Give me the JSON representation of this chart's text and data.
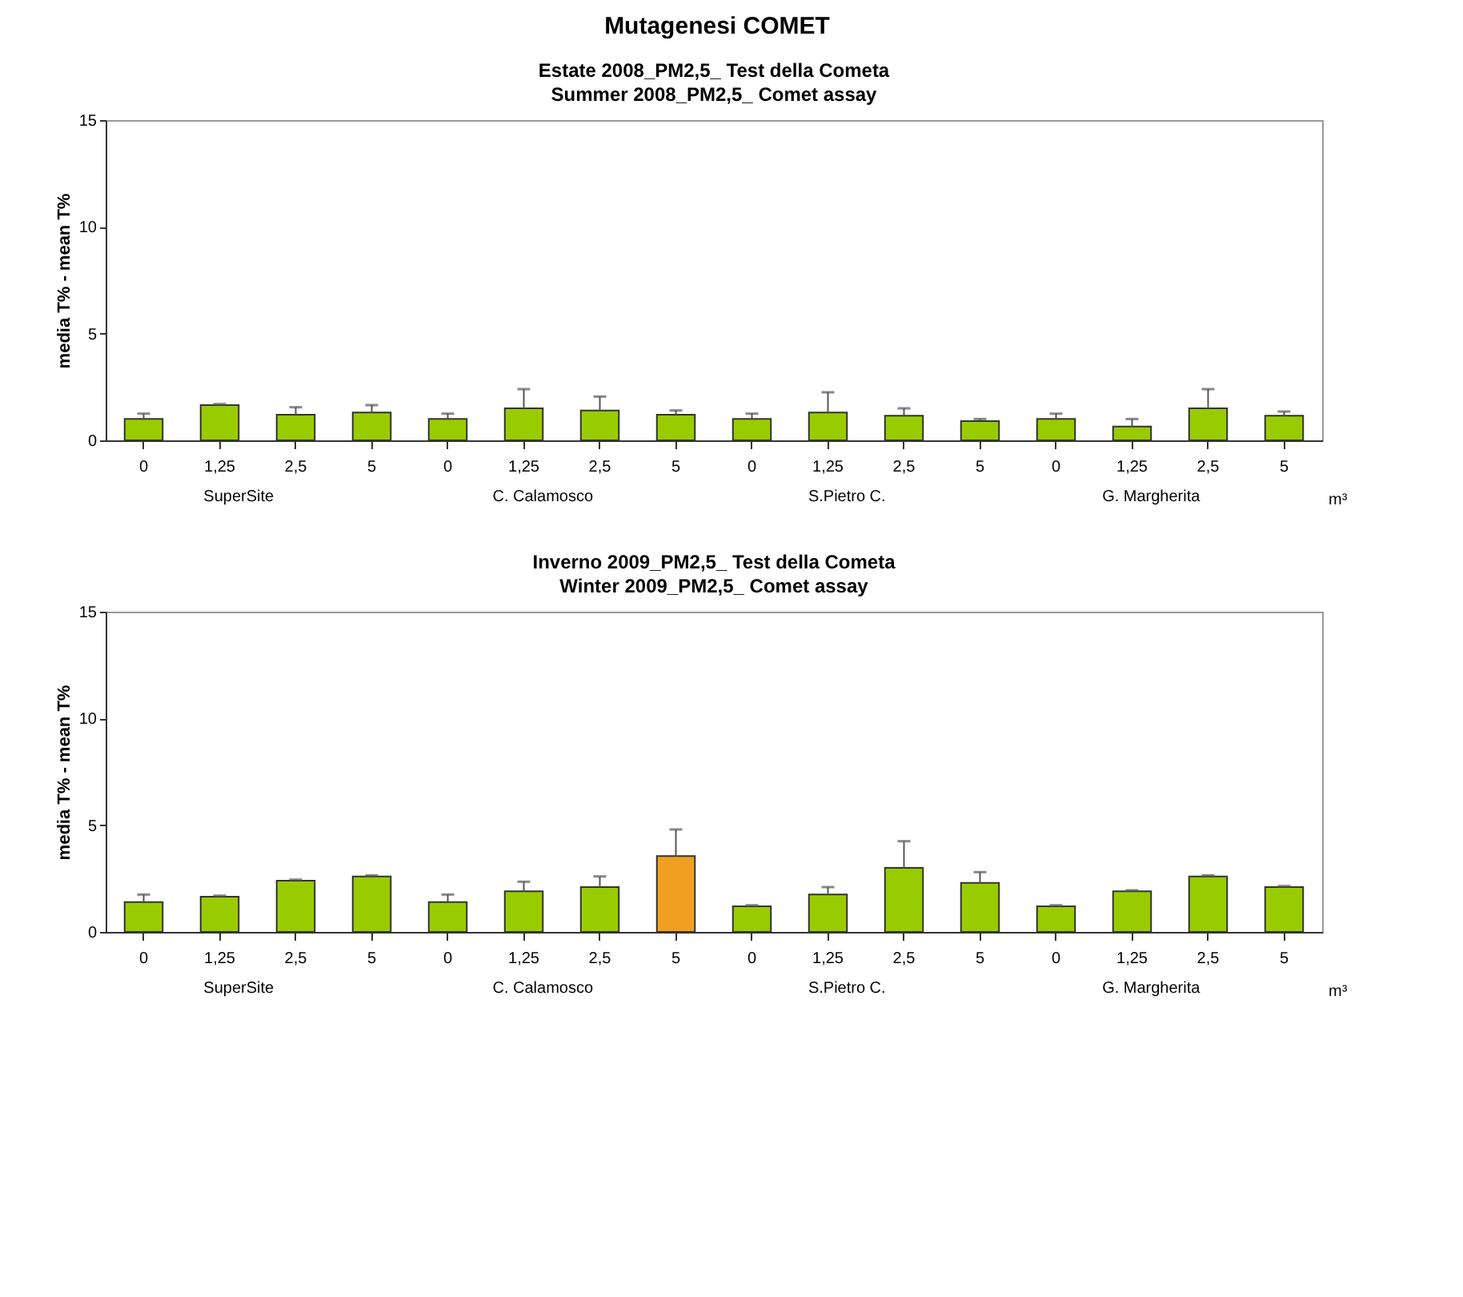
{
  "chart_data": [
    {
      "type": "bar",
      "title": "Estate 2008_PM2,5_ Test della Cometa",
      "subtitle": "Summer 2008_PM2,5_ Comet assay",
      "ylabel": "media T% - mean T%",
      "xlabel": "m³",
      "annotations": [
        "Mutagenesi COMET",
        "SuperSite",
        "C. Calamosco",
        "S.Pietro C.",
        "G. Margherita"
      ],
      "categories": [
        "0",
        "1,25",
        "2,5",
        "5",
        "0",
        "1,25",
        "2,5",
        "5",
        "0",
        "1,25",
        "2,5",
        "5",
        "0",
        "1,25",
        "2,5",
        "5"
      ],
      "values": [
        1.0,
        1.65,
        1.2,
        1.3,
        1.0,
        1.5,
        1.4,
        1.2,
        1.0,
        1.3,
        1.15,
        0.9,
        1.0,
        0.65,
        1.5,
        1.15
      ],
      "errors": [
        [
          1.0,
          1.25
        ],
        [
          1.65,
          1.7
        ],
        [
          1.2,
          1.55
        ],
        [
          1.3,
          1.65
        ],
        [
          1.0,
          1.25
        ],
        [
          1.5,
          2.4
        ],
        [
          1.4,
          2.05
        ],
        [
          1.2,
          1.4
        ],
        [
          1.0,
          1.25
        ],
        [
          1.3,
          2.25
        ],
        [
          1.15,
          1.5
        ],
        [
          0.9,
          1.0
        ],
        [
          1.0,
          1.25
        ],
        [
          0.65,
          1.0
        ],
        [
          1.5,
          2.4
        ],
        [
          1.15,
          1.35
        ]
      ],
      "colors": [
        "#99cc00",
        "#99cc00",
        "#99cc00",
        "#99cc00",
        "#99cc00",
        "#99cc00",
        "#99cc00",
        "#99cc00",
        "#99cc00",
        "#99cc00",
        "#99cc00",
        "#99cc00",
        "#99cc00",
        "#99cc00",
        "#99cc00",
        "#99cc00"
      ],
      "ylim": [
        0,
        15
      ],
      "yticks": [
        0,
        5,
        10,
        15
      ],
      "grid": false,
      "legend": false
    },
    {
      "type": "bar",
      "title": "Inverno 2009_PM2,5_ Test della Cometa",
      "subtitle": "Winter 2009_PM2,5_ Comet assay",
      "ylabel": "media T% - mean T%",
      "xlabel": "m³",
      "annotations": [
        "SuperSite",
        "C. Calamosco",
        "S.Pietro C.",
        "G. Margherita"
      ],
      "categories": [
        "0",
        "1,25",
        "2,5",
        "5",
        "0",
        "1,25",
        "2,5",
        "5",
        "0",
        "1,25",
        "2,5",
        "5",
        "0",
        "1,25",
        "2,5",
        "5"
      ],
      "values": [
        1.4,
        1.65,
        2.4,
        2.6,
        1.4,
        1.9,
        2.1,
        3.55,
        1.2,
        1.75,
        3.0,
        2.3,
        1.2,
        1.9,
        2.6,
        2.1
      ],
      "errors": [
        [
          1.4,
          1.75
        ],
        [
          1.65,
          1.7
        ],
        [
          2.4,
          2.45
        ],
        [
          2.6,
          2.65
        ],
        [
          1.4,
          1.75
        ],
        [
          1.9,
          2.35
        ],
        [
          2.1,
          2.6
        ],
        [
          3.55,
          4.8
        ],
        [
          1.2,
          1.25
        ],
        [
          1.75,
          2.1
        ],
        [
          3.0,
          4.25
        ],
        [
          2.3,
          2.8
        ],
        [
          1.2,
          1.25
        ],
        [
          1.9,
          1.95
        ],
        [
          2.6,
          2.65
        ],
        [
          2.1,
          2.15
        ]
      ],
      "colors": [
        "#99cc00",
        "#99cc00",
        "#99cc00",
        "#99cc00",
        "#99cc00",
        "#99cc00",
        "#99cc00",
        "#f0a020",
        "#99cc00",
        "#99cc00",
        "#99cc00",
        "#99cc00",
        "#99cc00",
        "#99cc00",
        "#99cc00",
        "#99cc00"
      ],
      "ylim": [
        0,
        15
      ],
      "yticks": [
        0,
        5,
        10,
        15
      ],
      "grid": false,
      "legend": false
    }
  ]
}
